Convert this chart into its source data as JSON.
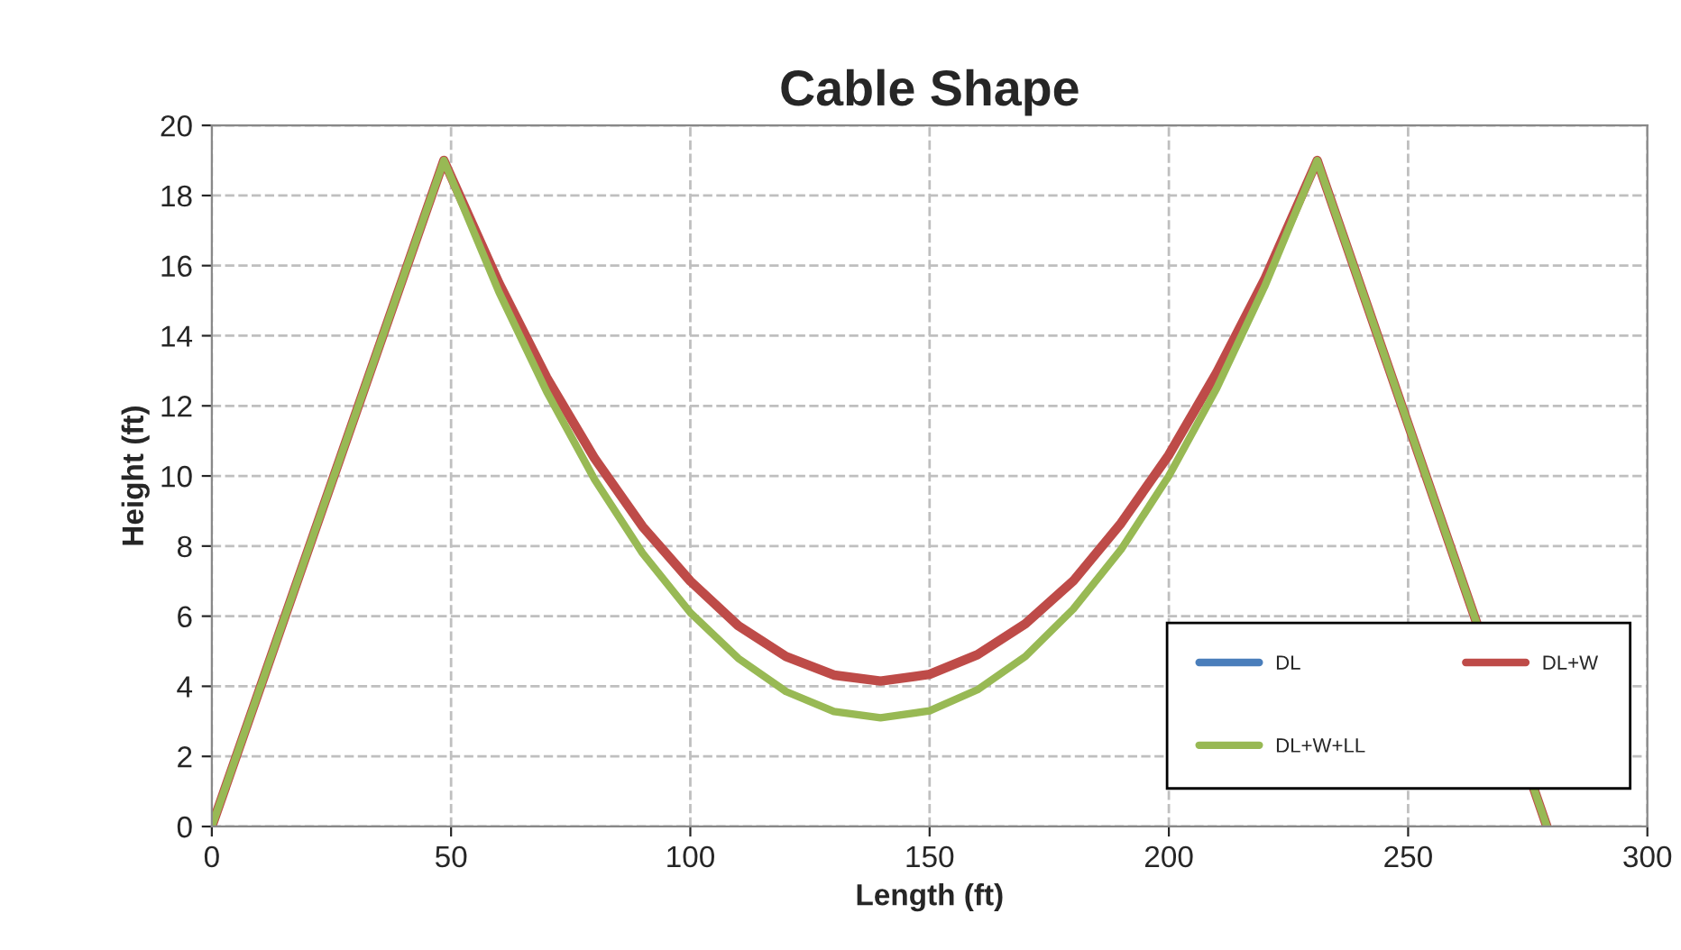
{
  "chart_data": {
    "type": "line",
    "title": "Cable Shape",
    "xlabel": "Length (ft)",
    "ylabel": "Height (ft)",
    "x": [
      0,
      48.5,
      60,
      70,
      80,
      90,
      100,
      110,
      120,
      130,
      139.75,
      150,
      160,
      170,
      180,
      190,
      200,
      210,
      220,
      231,
      279
    ],
    "series": [
      {
        "name": "DL",
        "color": "#4a7ebb",
        "values": [
          null,
          null,
          null,
          null,
          null,
          null,
          null,
          null,
          null,
          null,
          null,
          null,
          null,
          null,
          null,
          null,
          null,
          null,
          null,
          null,
          null
        ]
      },
      {
        "name": "DL+W",
        "color": "#be4b48",
        "values": [
          0,
          19,
          15.5,
          12.8,
          10.5,
          8.56,
          7.0,
          5.73,
          4.85,
          4.32,
          4.15,
          4.34,
          4.9,
          5.78,
          7.0,
          8.65,
          10.6,
          12.95,
          15.6,
          19,
          0
        ]
      },
      {
        "name": "DL+W+LL",
        "color": "#98b954",
        "values": [
          0,
          19,
          15.25,
          12.4,
          9.9,
          7.8,
          6.1,
          4.8,
          3.85,
          3.28,
          3.1,
          3.3,
          3.9,
          4.85,
          6.2,
          7.9,
          10.0,
          12.5,
          15.4,
          19,
          0
        ]
      }
    ],
    "xlim": [
      0,
      300
    ],
    "xticks": [
      0,
      50,
      100,
      150,
      200,
      250,
      300
    ],
    "ylim": [
      0,
      20
    ],
    "yticks": [
      0,
      2,
      4,
      6,
      8,
      10,
      12,
      14,
      16,
      18,
      20
    ],
    "grid": true,
    "legend": "bottom right",
    "line_style": "solid",
    "marker": "none"
  }
}
